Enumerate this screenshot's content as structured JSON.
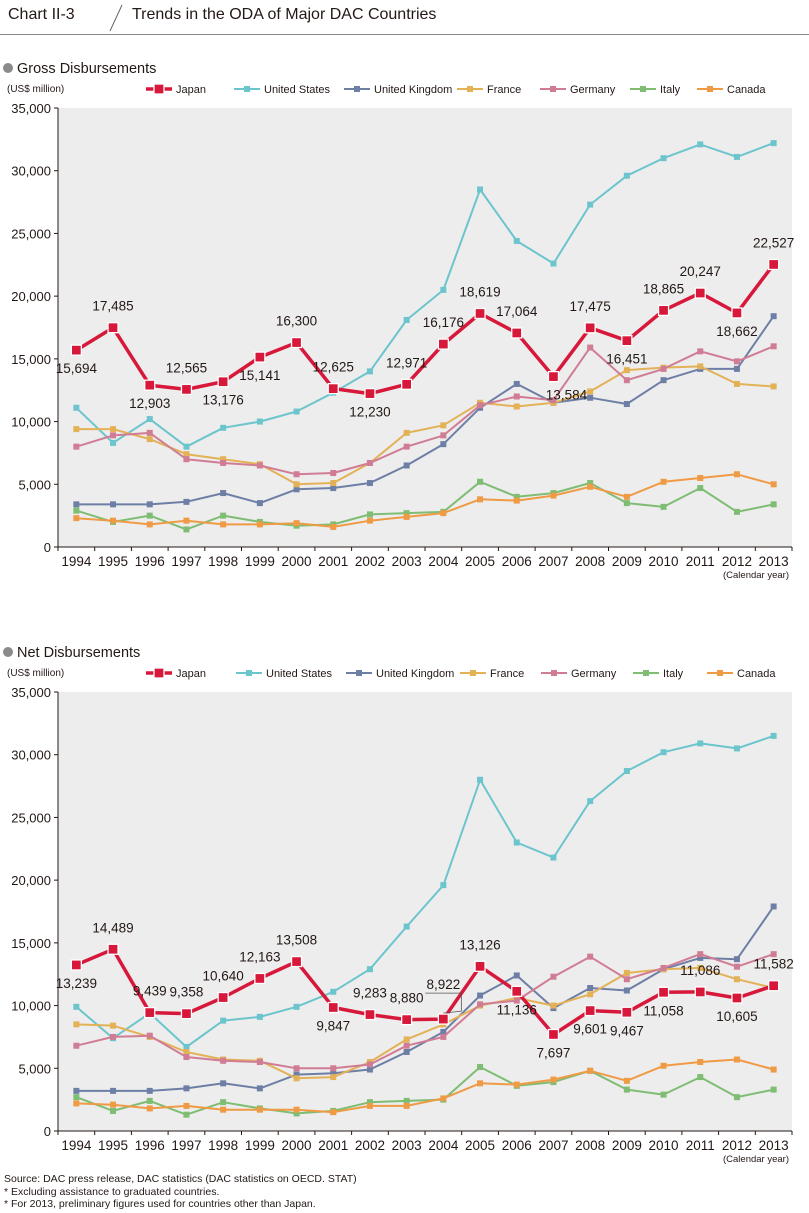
{
  "header": {
    "chart_number": "Chart II-3",
    "title": "Trends in the ODA of Major DAC Countries"
  },
  "footnotes": {
    "source": "Source: DAC press release, DAC statistics (DAC statistics on OECD. STAT)",
    "note1": "* Excluding assistance to graduated countries.",
    "note2": "* For 2013, preliminary figures used for countries other than Japan."
  },
  "colors": {
    "Japan": "#d7183a",
    "United States": "#6cc5cd",
    "United Kingdom": "#6e7fa6",
    "France": "#e3b257",
    "Germany": "#d07c94",
    "Italy": "#7fbd74",
    "Canada": "#ef9a45",
    "plot_bg": "#ededed"
  },
  "chart_data": [
    {
      "type": "line",
      "title": "Gross Disbursements",
      "ylabel": "(US$ million)",
      "xlabel": "(Calendar year)",
      "ylim": [
        0,
        35000
      ],
      "yticks": [
        0,
        5000,
        10000,
        15000,
        20000,
        25000,
        30000,
        35000
      ],
      "ytick_labels": [
        "0",
        "5,000",
        "10,000",
        "15,000",
        "20,000",
        "25,000",
        "30,000",
        "35,000"
      ],
      "categories": [
        "1994",
        "1995",
        "1996",
        "1997",
        "1998",
        "1999",
        "2000",
        "2001",
        "2002",
        "2003",
        "2004",
        "2005",
        "2006",
        "2007",
        "2008",
        "2009",
        "2010",
        "2011",
        "2012",
        "2013"
      ],
      "series": [
        {
          "name": "Japan",
          "values": [
            15694,
            17485,
            12903,
            12565,
            13176,
            15141,
            16300,
            12625,
            12230,
            12971,
            16176,
            18619,
            17064,
            13584,
            17475,
            16451,
            18865,
            20247,
            18662,
            22527
          ]
        },
        {
          "name": "United States",
          "values": [
            11100,
            8300,
            10200,
            8000,
            9500,
            10000,
            10800,
            12300,
            14000,
            18100,
            20500,
            28500,
            24400,
            22600,
            27300,
            29600,
            31000,
            32100,
            31100,
            32200
          ]
        },
        {
          "name": "United Kingdom",
          "values": [
            3400,
            3400,
            3400,
            3600,
            4300,
            3500,
            4600,
            4700,
            5100,
            6500,
            8200,
            11100,
            13000,
            11500,
            11900,
            11400,
            13300,
            14200,
            14200,
            18400
          ]
        },
        {
          "name": "France",
          "values": [
            9400,
            9400,
            8600,
            7400,
            7000,
            6600,
            5000,
            5100,
            6700,
            9100,
            9700,
            11500,
            11200,
            11500,
            12400,
            14100,
            14300,
            14400,
            13000,
            12800
          ]
        },
        {
          "name": "Germany",
          "values": [
            8000,
            8900,
            9100,
            7000,
            6700,
            6500,
            5800,
            5900,
            6700,
            8000,
            8900,
            11300,
            12000,
            11700,
            15900,
            13300,
            14200,
            15600,
            14800,
            16000
          ]
        },
        {
          "name": "Italy",
          "values": [
            2900,
            2000,
            2500,
            1400,
            2500,
            2000,
            1700,
            1800,
            2600,
            2700,
            2800,
            5200,
            4000,
            4300,
            5100,
            3500,
            3200,
            4700,
            2800,
            3400
          ]
        },
        {
          "name": "Canada",
          "values": [
            2300,
            2100,
            1800,
            2100,
            1800,
            1800,
            1900,
            1600,
            2100,
            2400,
            2700,
            3800,
            3700,
            4100,
            4800,
            4000,
            5200,
            5500,
            5800,
            5000
          ]
        }
      ],
      "data_labels": [
        "15,694",
        "17,485",
        "12,903",
        "12,565",
        "13,176",
        "15,141",
        "16,300",
        "12,625",
        "12,230",
        "12,971",
        "16,176",
        "18,619",
        "17,064",
        "13,584",
        "17,475",
        "16,451",
        "18,865",
        "20,247",
        "18,662",
        "22,527"
      ]
    },
    {
      "type": "line",
      "title": "Net Disbursements",
      "ylabel": "(US$ million)",
      "xlabel": "(Calendar year)",
      "ylim": [
        0,
        35000
      ],
      "yticks": [
        0,
        5000,
        10000,
        15000,
        20000,
        25000,
        30000,
        35000
      ],
      "ytick_labels": [
        "0",
        "5,000",
        "10,000",
        "15,000",
        "20,000",
        "25,000",
        "30,000",
        "35,000"
      ],
      "categories": [
        "1994",
        "1995",
        "1996",
        "1997",
        "1998",
        "1999",
        "2000",
        "2001",
        "2002",
        "2003",
        "2004",
        "2005",
        "2006",
        "2007",
        "2008",
        "2009",
        "2010",
        "2011",
        "2012",
        "2013"
      ],
      "series": [
        {
          "name": "Japan",
          "values": [
            13239,
            14489,
            9439,
            9358,
            10640,
            12163,
            13508,
            9847,
            9283,
            8880,
            8922,
            13126,
            11136,
            7697,
            9601,
            9467,
            11058,
            11086,
            10605,
            11582
          ]
        },
        {
          "name": "United States",
          "values": [
            9900,
            7400,
            9400,
            6700,
            8800,
            9100,
            9900,
            11100,
            12900,
            16300,
            19600,
            28000,
            23000,
            21800,
            26300,
            28700,
            30200,
            30900,
            30500,
            31500
          ]
        },
        {
          "name": "United Kingdom",
          "values": [
            3200,
            3200,
            3200,
            3400,
            3800,
            3400,
            4500,
            4600,
            4900,
            6300,
            7900,
            10800,
            12400,
            9800,
            11400,
            11200,
            12900,
            13800,
            13700,
            17900
          ]
        },
        {
          "name": "France",
          "values": [
            8500,
            8400,
            7500,
            6300,
            5700,
            5600,
            4200,
            4300,
            5500,
            7300,
            8500,
            10000,
            10600,
            10000,
            10900,
            12600,
            12900,
            13000,
            12100,
            11400
          ]
        },
        {
          "name": "Germany",
          "values": [
            6800,
            7500,
            7600,
            5900,
            5600,
            5500,
            5000,
            5000,
            5300,
            6800,
            7500,
            10100,
            10400,
            12300,
            13900,
            12100,
            13000,
            14100,
            13100,
            14100
          ]
        },
        {
          "name": "Italy",
          "values": [
            2700,
            1600,
            2400,
            1300,
            2300,
            1800,
            1400,
            1600,
            2300,
            2400,
            2500,
            5100,
            3600,
            3900,
            4800,
            3300,
            2900,
            4300,
            2700,
            3300
          ]
        },
        {
          "name": "Canada",
          "values": [
            2200,
            2100,
            1800,
            2000,
            1700,
            1700,
            1700,
            1500,
            2000,
            2000,
            2600,
            3800,
            3700,
            4100,
            4800,
            4000,
            5200,
            5500,
            5700,
            4900
          ]
        }
      ],
      "data_labels": [
        "13,239",
        "14,489",
        "9,439",
        "9,358",
        "10,640",
        "12,163",
        "13,508",
        "9,847",
        "9,283",
        "8,880",
        "8,922",
        "13,126",
        "11,136",
        "7,697",
        "9,601",
        "9,467",
        "11,058",
        "11,086",
        "10,605",
        "11,582"
      ]
    }
  ]
}
